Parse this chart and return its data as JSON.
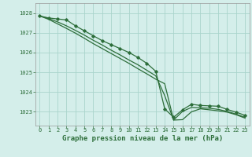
{
  "title": "Graphe pression niveau de la mer (hPa)",
  "background_color": "#d4eeea",
  "grid_color": "#aad4cc",
  "line_color": "#2d6e3a",
  "text_color": "#2d6e3a",
  "xlim": [
    -0.5,
    23.5
  ],
  "ylim": [
    1022.3,
    1028.5
  ],
  "yticks": [
    1023,
    1024,
    1025,
    1026,
    1027,
    1028
  ],
  "xticks": [
    0,
    1,
    2,
    3,
    4,
    5,
    6,
    7,
    8,
    9,
    10,
    11,
    12,
    13,
    14,
    15,
    16,
    17,
    18,
    19,
    20,
    21,
    22,
    23
  ],
  "series1_x": [
    0,
    1,
    2,
    3,
    4,
    5,
    6,
    7,
    8,
    9,
    10,
    11,
    12,
    13,
    14,
    15,
    16,
    17,
    18,
    19,
    20,
    21,
    22,
    23
  ],
  "series1_y": [
    1027.85,
    1027.75,
    1027.7,
    1027.65,
    1027.35,
    1027.1,
    1026.85,
    1026.6,
    1026.4,
    1026.2,
    1026.0,
    1025.75,
    1025.45,
    1025.05,
    1023.15,
    1022.72,
    1023.1,
    1023.38,
    1023.32,
    1023.3,
    1023.28,
    1023.12,
    1022.98,
    1022.82
  ],
  "series2_x": [
    0,
    1,
    2,
    3,
    4,
    5,
    6,
    7,
    8,
    9,
    10,
    11,
    12,
    13,
    14,
    15,
    16,
    17,
    18,
    19,
    20,
    21,
    22,
    23
  ],
  "series2_y": [
    1027.85,
    1027.72,
    1027.55,
    1027.35,
    1027.12,
    1026.88,
    1026.62,
    1026.38,
    1026.12,
    1025.88,
    1025.62,
    1025.38,
    1025.1,
    1024.82,
    1023.82,
    1022.58,
    1023.02,
    1023.22,
    1023.2,
    1023.18,
    1023.12,
    1023.02,
    1022.88,
    1022.72
  ],
  "series3_x": [
    0,
    1,
    2,
    3,
    4,
    5,
    6,
    7,
    8,
    9,
    10,
    11,
    12,
    13,
    14,
    15,
    16,
    17,
    18,
    19,
    20,
    21,
    22,
    23
  ],
  "series3_y": [
    1027.85,
    1027.68,
    1027.45,
    1027.22,
    1026.98,
    1026.72,
    1026.45,
    1026.2,
    1025.95,
    1025.7,
    1025.45,
    1025.18,
    1024.92,
    1024.65,
    1024.42,
    1022.58,
    1022.6,
    1023.0,
    1023.15,
    1023.1,
    1023.05,
    1022.98,
    1022.85,
    1022.68
  ]
}
